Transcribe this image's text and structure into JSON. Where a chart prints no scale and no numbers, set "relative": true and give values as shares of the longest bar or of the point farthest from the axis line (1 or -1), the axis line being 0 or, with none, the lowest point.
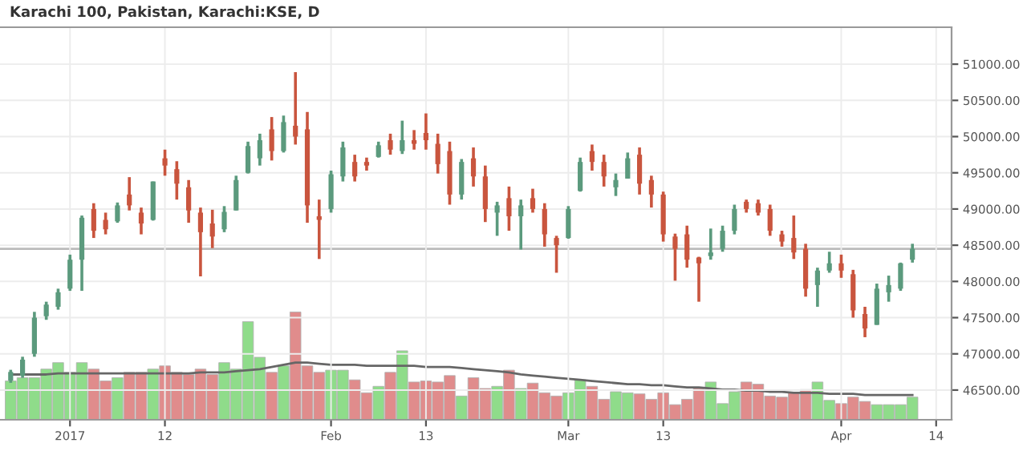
{
  "chart_data": [
    {
      "type": "candlestick",
      "title": "Karachi 100, Pakistan, Karachi:KSE, D",
      "categories": [
        null,
        null,
        null,
        null,
        null,
        "2017",
        null,
        null,
        null,
        null,
        null,
        null,
        null,
        "12",
        null,
        null,
        null,
        null,
        null,
        null,
        null,
        null,
        null,
        null,
        null,
        null,
        null,
        "Feb",
        null,
        null,
        null,
        null,
        null,
        null,
        null,
        "13",
        null,
        null,
        null,
        null,
        null,
        null,
        null,
        null,
        null,
        null,
        null,
        "Mar",
        null,
        null,
        null,
        null,
        null,
        null,
        null,
        "13",
        null,
        null,
        null,
        null,
        null,
        null,
        null,
        null,
        null,
        null,
        null,
        null,
        null,
        null,
        "Apr",
        null,
        null,
        null,
        null,
        null,
        null,
        null,
        "14"
      ],
      "ohlc": [
        [
          46630,
          46780,
          46600,
          46750
        ],
        [
          46700,
          46960,
          46670,
          46920
        ],
        [
          47000,
          47580,
          46960,
          47500
        ],
        [
          47520,
          47720,
          47470,
          47680
        ],
        [
          47650,
          47900,
          47610,
          47850
        ],
        [
          47900,
          48370,
          47870,
          48300
        ],
        [
          48300,
          48910,
          47870,
          48880
        ],
        [
          49000,
          49080,
          48600,
          48700
        ],
        [
          48850,
          48950,
          48650,
          48720
        ],
        [
          48830,
          49090,
          48810,
          49050
        ],
        [
          49200,
          49440,
          48980,
          49050
        ],
        [
          48950,
          49020,
          48650,
          48800
        ],
        [
          48850,
          49380,
          48840,
          49380
        ],
        [
          49700,
          49820,
          49460,
          49600
        ],
        [
          49550,
          49660,
          49130,
          49350
        ],
        [
          49300,
          49400,
          48810,
          48980
        ],
        [
          48950,
          49020,
          48070,
          48680
        ],
        [
          48800,
          48990,
          48460,
          48620
        ],
        [
          48720,
          49040,
          48680,
          48960
        ],
        [
          48980,
          49460,
          48980,
          49400
        ],
        [
          49500,
          49930,
          49490,
          49870
        ],
        [
          49700,
          50040,
          49600,
          49950
        ],
        [
          50100,
          50270,
          49670,
          49800
        ],
        [
          49800,
          50290,
          49780,
          50200
        ],
        [
          50150,
          50890,
          49890,
          50000
        ],
        [
          50100,
          50340,
          48810,
          49050
        ],
        [
          48900,
          49130,
          48310,
          48850
        ],
        [
          49000,
          49530,
          48950,
          49480
        ],
        [
          49450,
          49930,
          49380,
          49850
        ],
        [
          49650,
          49750,
          49380,
          49450
        ],
        [
          49650,
          49710,
          49530,
          49600
        ],
        [
          49720,
          49930,
          49710,
          49880
        ],
        [
          49950,
          50040,
          49750,
          49820
        ],
        [
          49800,
          50220,
          49760,
          49950
        ],
        [
          49950,
          50090,
          49820,
          49900
        ],
        [
          50050,
          50320,
          49820,
          49950
        ],
        [
          49900,
          50040,
          49490,
          49620
        ],
        [
          49800,
          49930,
          49060,
          49200
        ],
        [
          49200,
          49690,
          49130,
          49650
        ],
        [
          49700,
          49850,
          49310,
          49450
        ],
        [
          49450,
          49600,
          48820,
          49000
        ],
        [
          48950,
          49100,
          48630,
          49050
        ],
        [
          49150,
          49310,
          48700,
          48900
        ],
        [
          48900,
          49130,
          48440,
          49050
        ],
        [
          49150,
          49280,
          48950,
          49000
        ],
        [
          49000,
          49080,
          48480,
          48650
        ],
        [
          48600,
          48630,
          48120,
          48500
        ],
        [
          48600,
          49040,
          48590,
          49000
        ],
        [
          49250,
          49710,
          49240,
          49650
        ],
        [
          49800,
          49890,
          49530,
          49650
        ],
        [
          49650,
          49750,
          49310,
          49450
        ],
        [
          49300,
          49490,
          49180,
          49400
        ],
        [
          49420,
          49780,
          49420,
          49700
        ],
        [
          49750,
          49850,
          49200,
          49350
        ],
        [
          49400,
          49460,
          49020,
          49200
        ],
        [
          49200,
          49240,
          48550,
          48650
        ],
        [
          48620,
          48660,
          48010,
          48450
        ],
        [
          48650,
          48770,
          48190,
          48300
        ],
        [
          48330,
          48340,
          47720,
          48250
        ],
        [
          48350,
          48730,
          48300,
          48400
        ],
        [
          48450,
          48770,
          48410,
          48700
        ],
        [
          48700,
          49060,
          48650,
          49000
        ],
        [
          49100,
          49130,
          48950,
          49000
        ],
        [
          49080,
          49130,
          48910,
          48950
        ],
        [
          49000,
          49060,
          48630,
          48700
        ],
        [
          48650,
          48700,
          48480,
          48550
        ],
        [
          48600,
          48910,
          48310,
          48400
        ],
        [
          48450,
          48520,
          47790,
          47900
        ],
        [
          47950,
          48190,
          47650,
          48150
        ],
        [
          48150,
          48410,
          48120,
          48250
        ],
        [
          48250,
          48370,
          48050,
          48150
        ],
        [
          48100,
          48160,
          47500,
          47600
        ],
        [
          47550,
          47650,
          47230,
          47350
        ],
        [
          47400,
          47970,
          47400,
          47900
        ],
        [
          47850,
          48080,
          47720,
          47950
        ],
        [
          47900,
          48260,
          47870,
          48250
        ],
        [
          48300,
          48520,
          48260,
          48450
        ],
        null,
        null
      ],
      "colors": [
        "#5b9a7d",
        "#5b9a7d",
        "#5b9a7d",
        "#5b9a7d",
        "#5b9a7d",
        "#5b9a7d",
        "#5b9a7d",
        "#c9553e",
        "#c9553e",
        "#5b9a7d",
        "#c9553e",
        "#c9553e",
        "#5b9a7d",
        "#c9553e",
        "#c9553e",
        "#c9553e",
        "#c9553e",
        "#c9553e",
        "#5b9a7d",
        "#5b9a7d",
        "#5b9a7d",
        "#5b9a7d",
        "#c9553e",
        "#5b9a7d",
        "#c9553e",
        "#c9553e",
        "#c9553e",
        "#5b9a7d",
        "#5b9a7d",
        "#c9553e",
        "#c9553e",
        "#5b9a7d",
        "#c9553e",
        "#5b9a7d",
        "#c9553e",
        "#c9553e",
        "#c9553e",
        "#c9553e",
        "#5b9a7d",
        "#c9553e",
        "#c9553e",
        "#5b9a7d",
        "#c9553e",
        "#5b9a7d",
        "#c9553e",
        "#c9553e",
        "#c9553e",
        "#5b9a7d",
        "#5b9a7d",
        "#c9553e",
        "#c9553e",
        "#5b9a7d",
        "#5b9a7d",
        "#c9553e",
        "#c9553e",
        "#c9553e",
        "#c9553e",
        "#c9553e",
        "#c9553e",
        "#5b9a7d",
        "#5b9a7d",
        "#5b9a7d",
        "#c9553e",
        "#c9553e",
        "#c9553e",
        "#c9553e",
        "#c9553e",
        "#c9553e",
        "#5b9a7d",
        "#5b9a7d",
        "#c9553e",
        "#c9553e",
        "#c9553e",
        "#5b9a7d",
        "#5b9a7d",
        "#5b9a7d",
        "#5b9a7d",
        "#c9553e",
        "#c9553e"
      ],
      "ylim": [
        46090,
        51510
      ],
      "yticks": [
        {
          "value": 46500,
          "label": "46500.00"
        },
        {
          "value": 47000,
          "label": "47000.00"
        },
        {
          "value": 47500,
          "label": "47500.00"
        },
        {
          "value": 48000,
          "label": "48000.00"
        },
        {
          "value": 48500,
          "label": "48500.00"
        },
        {
          "value": 49000,
          "label": "49000.00"
        },
        {
          "value": 49500,
          "label": "49500.00"
        },
        {
          "value": 50000,
          "label": "50000.00"
        },
        {
          "value": 50500,
          "label": "50500.00"
        },
        {
          "value": 51000,
          "label": "51000.00"
        }
      ],
      "grid": true,
      "ref_lines": [
        {
          "axis": "y",
          "value": 48450,
          "color": "#bbbbbb"
        }
      ]
    },
    {
      "type": "bar",
      "relative": true,
      "categories": [
        null,
        null,
        null,
        null,
        null,
        null,
        null,
        null,
        null,
        null,
        null,
        null,
        null,
        null,
        null,
        null,
        null,
        null,
        null,
        null,
        null,
        null,
        null,
        null,
        null,
        null,
        null,
        null,
        null,
        null,
        null,
        null,
        null,
        null,
        null,
        null,
        null,
        null,
        null,
        null,
        null,
        null,
        null,
        null,
        null,
        null,
        null,
        null,
        null,
        null,
        null,
        null,
        null,
        null,
        null,
        null,
        null,
        null,
        null,
        null,
        null,
        null,
        null,
        null,
        null,
        null,
        null,
        null,
        null,
        null,
        null,
        null,
        null,
        null,
        null,
        null,
        null,
        null,
        null
      ],
      "series": [
        {
          "type": "bar",
          "values": [
            0.36,
            0.39,
            0.39,
            0.47,
            0.53,
            0.44,
            0.53,
            0.47,
            0.36,
            0.39,
            0.44,
            0.44,
            0.47,
            0.5,
            0.44,
            0.42,
            0.47,
            0.42,
            0.53,
            0.47,
            0.91,
            0.58,
            0.44,
            0.5,
            1,
            0.5,
            0.44,
            0.46,
            0.46,
            0.37,
            0.25,
            0.31,
            0.44,
            0.64,
            0.35,
            0.36,
            0.35,
            0.41,
            0.22,
            0.39,
            0.29,
            0.31,
            0.46,
            0.29,
            0.34,
            0.25,
            0.22,
            0.25,
            0.37,
            0.31,
            0.19,
            0.26,
            0.25,
            0.24,
            0.19,
            0.25,
            0.14,
            0.19,
            0.29,
            0.35,
            0.15,
            0.26,
            0.35,
            0.33,
            0.22,
            0.21,
            0.25,
            0.28,
            0.35,
            0.18,
            0.15,
            0.21,
            0.17,
            0.14,
            0.14,
            0.14,
            0.21,
            null,
            null
          ],
          "colors": [
            "#8fdc8a",
            "#8fdc8a",
            "#8fdc8a",
            "#8fdc8a",
            "#8fdc8a",
            "#8fdc8a",
            "#8fdc8a",
            "#e08c8c",
            "#e08c8c",
            "#8fdc8a",
            "#e08c8c",
            "#e08c8c",
            "#8fdc8a",
            "#e08c8c",
            "#e08c8c",
            "#e08c8c",
            "#e08c8c",
            "#e08c8c",
            "#8fdc8a",
            "#8fdc8a",
            "#8fdc8a",
            "#8fdc8a",
            "#e08c8c",
            "#8fdc8a",
            "#e08c8c",
            "#e08c8c",
            "#e08c8c",
            "#8fdc8a",
            "#8fdc8a",
            "#e08c8c",
            "#e08c8c",
            "#8fdc8a",
            "#e08c8c",
            "#8fdc8a",
            "#e08c8c",
            "#e08c8c",
            "#e08c8c",
            "#e08c8c",
            "#8fdc8a",
            "#e08c8c",
            "#e08c8c",
            "#8fdc8a",
            "#e08c8c",
            "#8fdc8a",
            "#e08c8c",
            "#e08c8c",
            "#e08c8c",
            "#8fdc8a",
            "#8fdc8a",
            "#e08c8c",
            "#e08c8c",
            "#8fdc8a",
            "#8fdc8a",
            "#e08c8c",
            "#e08c8c",
            "#e08c8c",
            "#e08c8c",
            "#e08c8c",
            "#e08c8c",
            "#8fdc8a",
            "#8fdc8a",
            "#8fdc8a",
            "#e08c8c",
            "#e08c8c",
            "#e08c8c",
            "#e08c8c",
            "#e08c8c",
            "#e08c8c",
            "#8fdc8a",
            "#8fdc8a",
            "#e08c8c",
            "#e08c8c",
            "#e08c8c",
            "#8fdc8a",
            "#8fdc8a",
            "#8fdc8a",
            "#8fdc8a",
            "#e08c8c",
            "#e08c8c"
          ]
        },
        {
          "type": "line",
          "color": "#666666",
          "values": [
            0.42,
            0.42,
            0.42,
            0.42,
            0.43,
            0.43,
            0.43,
            0.43,
            0.43,
            0.43,
            0.43,
            0.43,
            0.43,
            0.43,
            0.43,
            0.43,
            0.44,
            0.44,
            0.44,
            0.45,
            0.46,
            0.47,
            0.49,
            0.51,
            0.53,
            0.53,
            0.52,
            0.51,
            0.51,
            0.51,
            0.5,
            0.5,
            0.5,
            0.5,
            0.5,
            0.49,
            0.49,
            0.49,
            0.48,
            0.47,
            0.46,
            0.45,
            0.44,
            0.42,
            0.41,
            0.4,
            0.39,
            0.38,
            0.37,
            0.36,
            0.35,
            0.34,
            0.33,
            0.33,
            0.32,
            0.32,
            0.31,
            0.3,
            0.3,
            0.29,
            0.28,
            0.28,
            0.27,
            0.27,
            0.26,
            0.26,
            0.25,
            0.25,
            0.25,
            0.24,
            0.24,
            0.24,
            0.23,
            0.23,
            0.23,
            0.23,
            0.23,
            null,
            null
          ]
        }
      ]
    }
  ]
}
